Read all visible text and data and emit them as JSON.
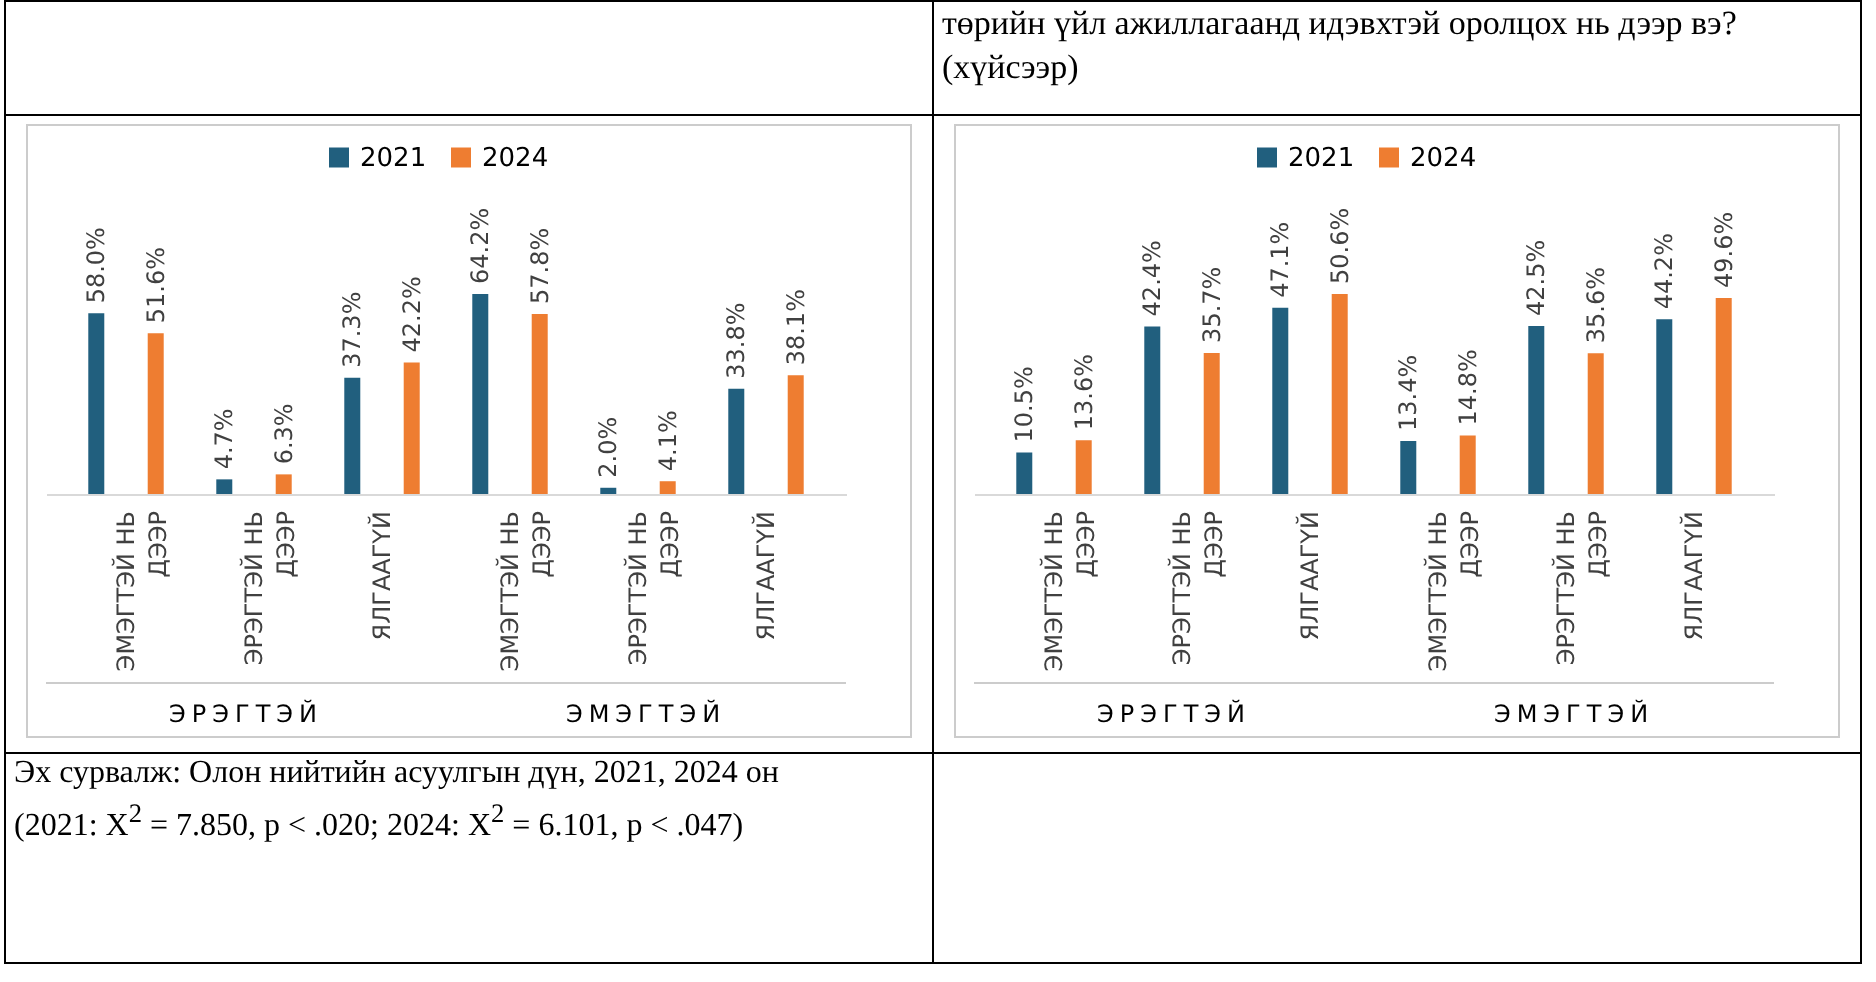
{
  "chart_data": [
    {
      "type": "bar",
      "categories": [
        "ЭМЭГТЭЙ НЬ ДЭЭР",
        "ЭРЭГТЭЙ НЬ ДЭЭР",
        "ЯЛГААГҮЙ",
        "ЭМЭГТЭЙ НЬ ДЭЭР",
        "ЭРЭГТЭЙ НЬ ДЭЭР",
        "ЯЛГААГҮЙ"
      ],
      "legend": "top",
      "series": [
        {
          "name": "2021",
          "color": "#215f7e",
          "values": [
            58.0,
            4.7,
            37.3,
            64.2,
            2.0,
            33.8
          ],
          "value_labels": [
            "58.0%",
            "4.7%",
            "37.3%",
            "64.2%",
            "2.0%",
            "33.8%"
          ]
        },
        {
          "name": "2024",
          "color": "#ee7d31",
          "values": [
            51.6,
            6.3,
            42.2,
            57.8,
            4.1,
            38.1
          ],
          "value_labels": [
            "51.6%",
            "6.3%",
            "42.2%",
            "57.8%",
            "4.1%",
            "38.1%"
          ]
        }
      ],
      "annotations": [
        "ЭРЭГТЭЙ",
        "ЭМЭГТЭЙ",
        "Эх сурвалж: Олон нийтийн асуулгын дүн, 2021, 2024 он",
        "(2021: X$^{2}$ = 7.850, p < .020; 2024: X$^{2}$ = 6.101, p < .047)"
      ]
    },
    {
      "type": "bar",
      "title": "төрийн үйл ажиллагаанд идэвхтэй оролцох нь дээр вэ? (хүйсээр)",
      "categories": [
        "ЭМЭГТЭЙ НЬ ДЭЭР",
        "ЭРЭГТЭЙ НЬ ДЭЭР",
        "ЯЛГААГҮЙ",
        "ЭМЭГТЭЙ НЬ ДЭЭР",
        "ЭРЭГТЭЙ НЬ ДЭЭР",
        "ЯЛГААГҮЙ"
      ],
      "legend": "top",
      "series": [
        {
          "name": "2021",
          "color": "#215f7e",
          "values": [
            10.5,
            42.4,
            47.1,
            13.4,
            42.5,
            44.2
          ],
          "value_labels": [
            "10.5%",
            "42.4%",
            "47.1%",
            "13.4%",
            "42.5%",
            "44.2%"
          ]
        },
        {
          "name": "2024",
          "color": "#ee7d31",
          "values": [
            13.6,
            35.7,
            50.6,
            14.8,
            35.6,
            49.6
          ],
          "value_labels": [
            "13.6%",
            "35.7%",
            "50.6%",
            "14.8%",
            "35.6%",
            "49.6%"
          ]
        }
      ],
      "annotations": [
        "ЭРЭГТЭЙ",
        "ЭМЭГТЭЙ"
      ]
    }
  ]
}
